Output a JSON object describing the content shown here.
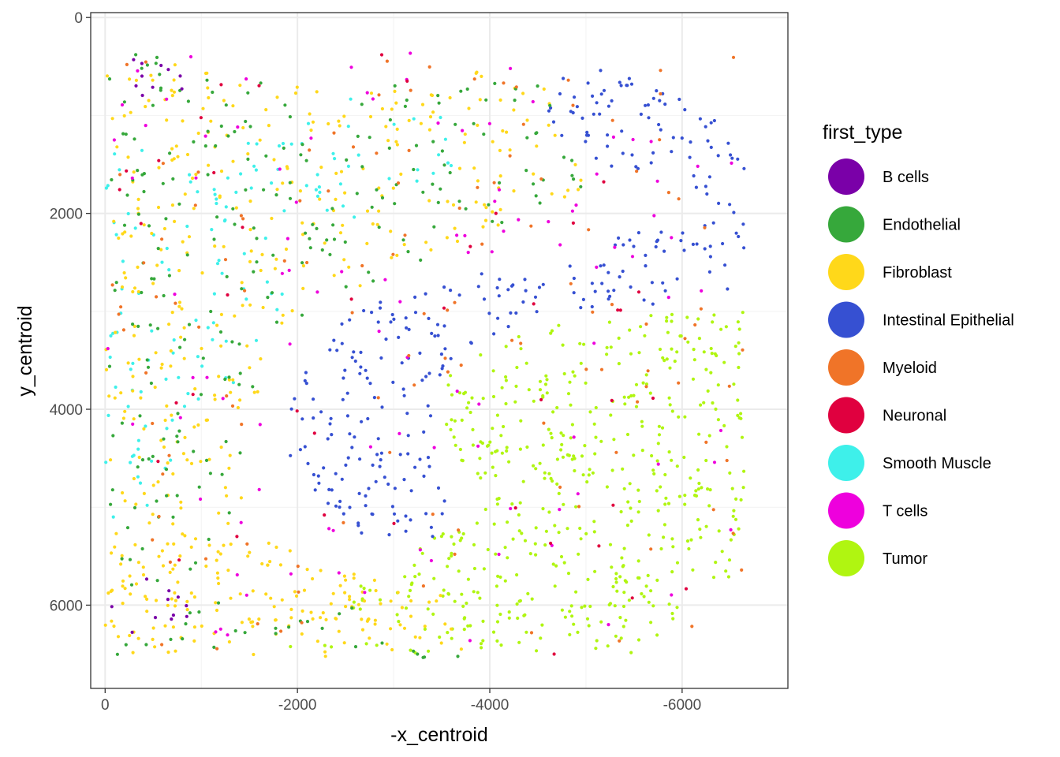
{
  "chart_data": {
    "type": "scatter",
    "xlabel": "-x_centroid",
    "ylabel": "y_centroid",
    "xlim": [
      150,
      -7100
    ],
    "ylim": [
      6850,
      -50
    ],
    "y_reversed": true,
    "x_ticks": [
      {
        "value": 0,
        "label": "0"
      },
      {
        "value": -2000,
        "label": "-2000"
      },
      {
        "value": -4000,
        "label": "-4000"
      },
      {
        "value": -6000,
        "label": "-6000"
      }
    ],
    "y_ticks": [
      {
        "value": 0,
        "label": "0"
      },
      {
        "value": 2000,
        "label": "2000"
      },
      {
        "value": 4000,
        "label": "4000"
      },
      {
        "value": 6000,
        "label": "6000"
      }
    ],
    "grid": true,
    "legend": {
      "title": "first_type",
      "position": "right",
      "entries": [
        {
          "name": "B cells",
          "color": "#7a00a8"
        },
        {
          "name": "Endothelial",
          "color": "#36a83b"
        },
        {
          "name": "Fibroblast",
          "color": "#ffd81a"
        },
        {
          "name": "Intestinal Epithelial",
          "color": "#3650d2"
        },
        {
          "name": "Myeloid",
          "color": "#f07428"
        },
        {
          "name": "Neuronal",
          "color": "#e0003f"
        },
        {
          "name": "Smooth Muscle",
          "color": "#3ef0ea"
        },
        {
          "name": "T cells",
          "color": "#ee00dd"
        },
        {
          "name": "Tumor",
          "color": "#b0f511"
        }
      ]
    },
    "regions": [
      {
        "type": "Tumor",
        "polygon": [
          [
            -3600,
            3550
          ],
          [
            -4500,
            3150
          ],
          [
            -6650,
            2950
          ],
          [
            -6650,
            5700
          ],
          [
            -6000,
            5800
          ],
          [
            -6000,
            6250
          ],
          [
            -5500,
            6500
          ],
          [
            -4000,
            6500
          ],
          [
            -3500,
            6400
          ],
          [
            -2300,
            6000
          ],
          [
            -3000,
            5600
          ],
          [
            -3900,
            5000
          ],
          [
            -3500,
            4200
          ]
        ],
        "density": 1.0
      },
      {
        "type": "Tumor",
        "polygon": [
          [
            -1450,
            6500
          ],
          [
            -2100,
            6380
          ],
          [
            -3200,
            6380
          ],
          [
            -3450,
            6500
          ]
        ],
        "density": 0.9
      },
      {
        "type": "Intestinal Epithelial",
        "polygon": [
          [
            -1800,
            4300
          ],
          [
            -2200,
            3300
          ],
          [
            -3000,
            2700
          ],
          [
            -4000,
            2600
          ],
          [
            -5500,
            2200
          ],
          [
            -6650,
            1900
          ],
          [
            -6650,
            2800
          ],
          [
            -5500,
            3000
          ],
          [
            -4300,
            3100
          ],
          [
            -3600,
            3500
          ],
          [
            -3300,
            4300
          ],
          [
            -3600,
            4900
          ],
          [
            -3500,
            5300
          ],
          [
            -2700,
            5300
          ],
          [
            -2300,
            5000
          ]
        ],
        "density": 0.9
      },
      {
        "type": "Intestinal Epithelial",
        "polygon": [
          [
            -4550,
            1100
          ],
          [
            -4800,
            400
          ],
          [
            -5400,
            600
          ],
          [
            -6200,
            900
          ],
          [
            -6650,
            1400
          ],
          [
            -6650,
            2100
          ],
          [
            -6000,
            1700
          ],
          [
            -5200,
            1500
          ]
        ],
        "density": 1.0
      },
      {
        "type": "Smooth Muscle",
        "polygon": [
          [
            0,
            1200
          ],
          [
            -1100,
            1400
          ],
          [
            -2200,
            800
          ],
          [
            -3500,
            900
          ],
          [
            -3700,
            1500
          ],
          [
            -3000,
            1800
          ],
          [
            -2200,
            2300
          ],
          [
            -1700,
            3200
          ],
          [
            -1200,
            4000
          ],
          [
            -700,
            4800
          ],
          [
            0,
            5400
          ]
        ],
        "density": 0.35
      },
      {
        "type": "Fibroblast",
        "polygon": [
          [
            0,
            300
          ],
          [
            -2500,
            800
          ],
          [
            -4500,
            400
          ],
          [
            -5000,
            1800
          ],
          [
            -3500,
            2400
          ],
          [
            -1700,
            3200
          ],
          [
            -1200,
            6300
          ],
          [
            -2300,
            5900
          ],
          [
            -3900,
            6600
          ],
          [
            0,
            6500
          ]
        ],
        "density": 0.45
      },
      {
        "type": "Fibroblast",
        "polygon": [
          [
            0,
            5400
          ],
          [
            -1500,
            5300
          ],
          [
            -2500,
            5600
          ],
          [
            -3500,
            5900
          ],
          [
            -3800,
            6500
          ],
          [
            -2500,
            6200
          ],
          [
            -1500,
            6300
          ],
          [
            -700,
            6500
          ],
          [
            0,
            6500
          ]
        ],
        "density": 0.8
      },
      {
        "type": "Endothelial",
        "polygon": [
          [
            0,
            300
          ],
          [
            -2500,
            800
          ],
          [
            -4500,
            400
          ],
          [
            -5000,
            1800
          ],
          [
            -3500,
            2400
          ],
          [
            -1700,
            3200
          ],
          [
            -1200,
            6300
          ],
          [
            -2300,
            5900
          ],
          [
            -3900,
            6600
          ],
          [
            0,
            6500
          ]
        ],
        "density": 0.3
      },
      {
        "type": "B cells",
        "polygon": [
          [
            -200,
            400
          ],
          [
            -800,
            400
          ],
          [
            -800,
            800
          ],
          [
            -200,
            800
          ]
        ],
        "density": 0.8
      },
      {
        "type": "B cells",
        "polygon": [
          [
            0,
            5700
          ],
          [
            -900,
            5700
          ],
          [
            -900,
            6500
          ],
          [
            0,
            6500
          ]
        ],
        "density": 0.3
      },
      {
        "type": "T cells",
        "polygon": [
          [
            0,
            300
          ],
          [
            -6650,
            300
          ],
          [
            -6650,
            6500
          ],
          [
            0,
            6500
          ]
        ],
        "density": 0.05
      },
      {
        "type": "Myeloid",
        "polygon": [
          [
            0,
            300
          ],
          [
            -6650,
            300
          ],
          [
            -6650,
            6500
          ],
          [
            0,
            6500
          ]
        ],
        "density": 0.06
      },
      {
        "type": "Neuronal",
        "polygon": [
          [
            0,
            300
          ],
          [
            -6650,
            300
          ],
          [
            -6650,
            6500
          ],
          [
            0,
            6500
          ]
        ],
        "density": 0.02
      }
    ]
  }
}
